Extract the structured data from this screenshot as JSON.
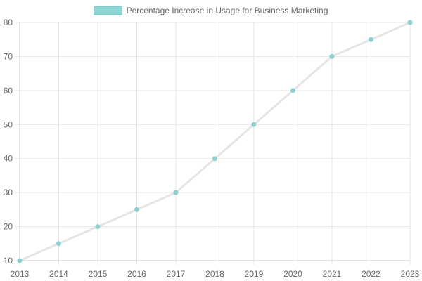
{
  "chart_data": {
    "type": "line",
    "x": [
      "2013",
      "2014",
      "2015",
      "2016",
      "2017",
      "2018",
      "2019",
      "2020",
      "2021",
      "2022",
      "2023"
    ],
    "series": [
      {
        "name": "Percentage Increase in Usage for Business Marketing",
        "values": [
          10,
          15,
          20,
          25,
          30,
          40,
          50,
          60,
          70,
          75,
          80
        ]
      }
    ],
    "ylim": [
      10,
      80
    ],
    "yticks": [
      "10",
      "20",
      "30",
      "40",
      "50",
      "60",
      "70",
      "80"
    ],
    "grid": true,
    "legend_position": "top",
    "title": "",
    "xlabel": "",
    "ylabel": ""
  },
  "colors": {
    "line": "#e5e5e5",
    "point": "#8ecfd0",
    "legend_fill": "#8fd6d6",
    "legend_border": "#6cc3c3",
    "grid": "#e6e6e6",
    "axis": "#cccccc",
    "text": "#666666"
  }
}
